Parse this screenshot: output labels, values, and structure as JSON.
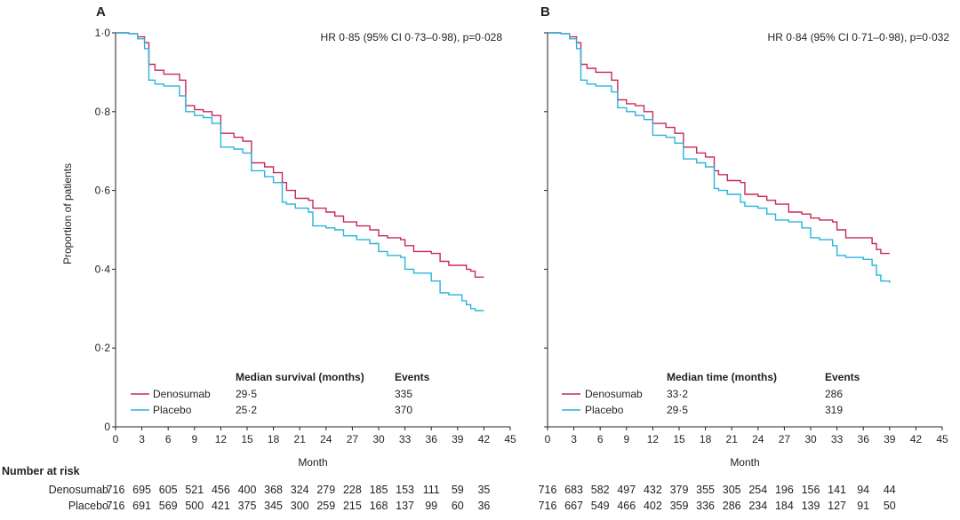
{
  "colors": {
    "denosumab": "#c8285c",
    "placebo": "#28b4dc",
    "axis": "#231f20"
  },
  "risk_table": {
    "title": "Number at risk"
  },
  "chart_data": [
    {
      "panel": "A",
      "type": "line",
      "hr_text": "HR 0·85 (95% CI 0·73–0·98), p=0·028",
      "xlabel": "Month",
      "ylabel": "Proportion of patients",
      "xlim": [
        0,
        45
      ],
      "ylim": [
        0,
        1.0
      ],
      "x_ticks": [
        0,
        3,
        6,
        9,
        12,
        15,
        18,
        21,
        24,
        27,
        30,
        33,
        36,
        39,
        42,
        45
      ],
      "y_ticks": [
        0,
        0.2,
        0.4,
        0.6,
        0.8,
        1.0
      ],
      "y_tick_labels": [
        "0",
        "0·2",
        "0·4",
        "0·6",
        "0·8",
        "1·0"
      ],
      "table": {
        "col1_header": "Median survival (months)",
        "col2_header": "Events",
        "rows": [
          {
            "name": "Denosumab",
            "median": "29·5",
            "events": "335"
          },
          {
            "name": "Placebo",
            "median": "25·2",
            "events": "370"
          }
        ]
      },
      "series": [
        {
          "name": "Denosumab",
          "color": "#c8285c",
          "x": [
            0,
            1.5,
            2.5,
            3.3,
            3.8,
            4.5,
            5.5,
            7.3,
            8,
            9,
            10,
            11,
            12,
            13.5,
            14.5,
            15.5,
            17,
            18,
            19,
            19.5,
            20.5,
            22,
            22.5,
            24,
            25,
            26,
            27.5,
            29,
            30,
            31,
            32.5,
            33,
            34,
            36,
            37,
            38,
            39.5,
            40,
            40.5,
            41,
            41.5,
            42
          ],
          "y": [
            1.0,
            0.998,
            0.99,
            0.975,
            0.92,
            0.905,
            0.895,
            0.88,
            0.815,
            0.805,
            0.8,
            0.79,
            0.745,
            0.735,
            0.725,
            0.67,
            0.66,
            0.645,
            0.62,
            0.6,
            0.58,
            0.575,
            0.555,
            0.545,
            0.535,
            0.52,
            0.51,
            0.5,
            0.485,
            0.48,
            0.475,
            0.46,
            0.445,
            0.44,
            0.42,
            0.41,
            0.41,
            0.4,
            0.395,
            0.38,
            0.38,
            0.38
          ]
        },
        {
          "name": "Placebo",
          "color": "#28b4dc",
          "x": [
            0,
            1.5,
            2.5,
            3.3,
            3.8,
            4.5,
            5.5,
            7.3,
            8,
            9,
            10,
            11,
            12,
            13.5,
            14.5,
            15.5,
            17,
            18,
            19,
            19.5,
            20.5,
            22,
            22.5,
            24,
            25,
            26,
            27.5,
            29,
            30,
            31,
            32.5,
            33,
            34,
            36,
            37,
            38,
            39.5,
            40,
            40.5,
            41,
            41.5,
            42
          ],
          "y": [
            1.0,
            0.998,
            0.985,
            0.96,
            0.88,
            0.87,
            0.865,
            0.84,
            0.8,
            0.79,
            0.785,
            0.77,
            0.71,
            0.705,
            0.695,
            0.65,
            0.635,
            0.62,
            0.57,
            0.565,
            0.555,
            0.545,
            0.51,
            0.505,
            0.5,
            0.485,
            0.475,
            0.465,
            0.445,
            0.435,
            0.43,
            0.4,
            0.39,
            0.37,
            0.34,
            0.335,
            0.32,
            0.31,
            0.3,
            0.295,
            0.295,
            0.295
          ]
        }
      ],
      "at_risk": {
        "Denosumab": [
          "716",
          "695",
          "605",
          "521",
          "456",
          "400",
          "368",
          "324",
          "279",
          "228",
          "185",
          "153",
          "111",
          "59",
          "35"
        ],
        "Placebo": [
          "716",
          "691",
          "569",
          "500",
          "421",
          "375",
          "345",
          "300",
          "259",
          "215",
          "168",
          "137",
          "99",
          "60",
          "36"
        ]
      }
    },
    {
      "panel": "B",
      "type": "line",
      "hr_text": "HR 0·84 (95% CI 0·71–0·98), p=0·032",
      "xlabel": "Month",
      "ylabel": "",
      "xlim": [
        0,
        45
      ],
      "ylim": [
        0,
        1.0
      ],
      "x_ticks": [
        0,
        3,
        6,
        9,
        12,
        15,
        18,
        21,
        24,
        27,
        30,
        33,
        36,
        39,
        42,
        45
      ],
      "y_ticks": [
        0,
        0.2,
        0.4,
        0.6,
        0.8,
        1.0
      ],
      "table": {
        "col1_header": "Median time (months)",
        "col2_header": "Events",
        "rows": [
          {
            "name": "Denosumab",
            "median": "33·2",
            "events": "286"
          },
          {
            "name": "Placebo",
            "median": "29·5",
            "events": "319"
          }
        ]
      },
      "series": [
        {
          "name": "Denosumab",
          "color": "#c8285c",
          "x": [
            0,
            1.5,
            2.5,
            3.3,
            3.8,
            4.5,
            5.5,
            7.3,
            8,
            9,
            10,
            11,
            12,
            13.5,
            14.5,
            15.5,
            17,
            18,
            19,
            19.5,
            20.5,
            22,
            22.5,
            24,
            25,
            26,
            27.5,
            29,
            30,
            31,
            32.5,
            33,
            34,
            36,
            37,
            37.5,
            38,
            38.5,
            39
          ],
          "y": [
            1.0,
            0.998,
            0.99,
            0.975,
            0.92,
            0.91,
            0.9,
            0.88,
            0.83,
            0.82,
            0.815,
            0.8,
            0.77,
            0.76,
            0.745,
            0.71,
            0.695,
            0.685,
            0.65,
            0.64,
            0.625,
            0.62,
            0.59,
            0.585,
            0.575,
            0.565,
            0.545,
            0.54,
            0.53,
            0.525,
            0.52,
            0.5,
            0.48,
            0.48,
            0.465,
            0.45,
            0.44,
            0.44,
            0.44
          ]
        },
        {
          "name": "Placebo",
          "color": "#28b4dc",
          "x": [
            0,
            1.5,
            2.5,
            3.3,
            3.8,
            4.5,
            5.5,
            7.3,
            8,
            9,
            10,
            11,
            12,
            13.5,
            14.5,
            15.5,
            17,
            18,
            19,
            19.5,
            20.5,
            22,
            22.5,
            24,
            25,
            26,
            27.5,
            29,
            30,
            31,
            32.5,
            33,
            34,
            36,
            37,
            37.5,
            38,
            38.5,
            39
          ],
          "y": [
            1.0,
            0.998,
            0.985,
            0.96,
            0.88,
            0.87,
            0.865,
            0.85,
            0.81,
            0.8,
            0.79,
            0.78,
            0.74,
            0.735,
            0.72,
            0.68,
            0.67,
            0.66,
            0.605,
            0.6,
            0.59,
            0.57,
            0.56,
            0.555,
            0.54,
            0.525,
            0.52,
            0.505,
            0.48,
            0.475,
            0.46,
            0.435,
            0.43,
            0.425,
            0.41,
            0.385,
            0.37,
            0.37,
            0.365
          ]
        }
      ],
      "at_risk": {
        "Denosumab": [
          "716",
          "683",
          "582",
          "497",
          "432",
          "379",
          "355",
          "305",
          "254",
          "196",
          "156",
          "141",
          "94",
          "44"
        ],
        "Placebo": [
          "716",
          "667",
          "549",
          "466",
          "402",
          "359",
          "336",
          "286",
          "234",
          "184",
          "139",
          "127",
          "91",
          "50"
        ]
      }
    }
  ]
}
